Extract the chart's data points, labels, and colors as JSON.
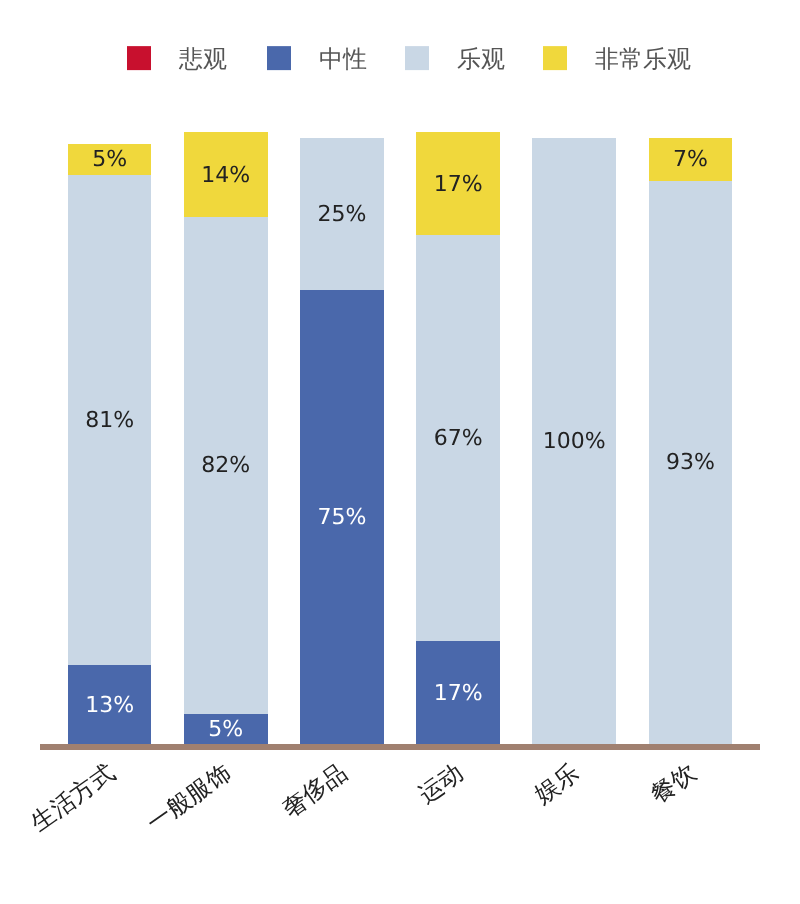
{
  "chart_data": {
    "type": "bar",
    "stacked": true,
    "categories": [
      "生活方式",
      "一般服饰",
      "奢侈品",
      "运动",
      "娱乐",
      "餐饮"
    ],
    "series": [
      {
        "name": "悲观",
        "color": "#c8102e",
        "values": [
          null,
          null,
          null,
          null,
          null,
          null
        ],
        "value_labels": [
          null,
          null,
          null,
          null,
          null,
          null
        ]
      },
      {
        "name": "中性",
        "color": "#4a68ab",
        "values": [
          13,
          5,
          75,
          17,
          null,
          null
        ],
        "value_labels": [
          "13%",
          "5%",
          "75%",
          "17%",
          null,
          null
        ]
      },
      {
        "name": "乐观",
        "color": "#c9d7e5",
        "values": [
          81,
          82,
          25,
          67,
          100,
          93
        ],
        "value_labels": [
          "81%",
          "82%",
          "25%",
          "67%",
          "100%",
          "93%"
        ]
      },
      {
        "name": "非常乐观",
        "color": "#f0d83c",
        "values": [
          5,
          14,
          null,
          17,
          null,
          7
        ],
        "value_labels": [
          "5%",
          "14%",
          null,
          "17%",
          null,
          "7%"
        ]
      }
    ],
    "legend": "top",
    "tick_labels": "x"
  }
}
